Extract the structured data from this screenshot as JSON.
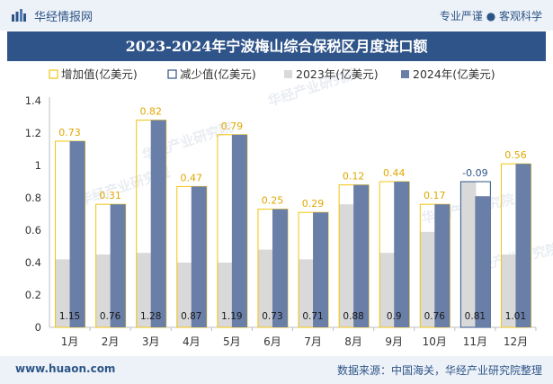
{
  "header": {
    "brand": "华经情报网",
    "tagline": "专业严谨 ● 客观科学"
  },
  "title": "2023-2024年宁波梅山综合保税区月度进口额",
  "footer": {
    "url": "www.huaon.com",
    "source": "数据来源：中国海关，华经产业研究院整理"
  },
  "watermark": "华经产业研究院",
  "colors": {
    "increase": "#f2c40f",
    "decrease": "#2f5489",
    "y2023": "#d9d9d9",
    "y2024": "#6a7fa8",
    "header_text": "#2e5587",
    "title_bg": "#2f5489"
  },
  "chart_data": {
    "type": "bar",
    "title": "2023-2024年宁波梅山综合保税区月度进口额",
    "categories": [
      "1月",
      "2月",
      "3月",
      "4月",
      "5月",
      "6月",
      "7月",
      "8月",
      "9月",
      "10月",
      "11月",
      "12月"
    ],
    "legend": [
      "增加值(亿美元)",
      "减少值(亿美元)",
      "2023年(亿美元)",
      "2024年(亿美元)"
    ],
    "legend_position": "top",
    "series": [
      {
        "name": "2023年(亿美元)",
        "values": [
          0.42,
          0.45,
          0.46,
          0.4,
          0.4,
          0.48,
          0.42,
          0.76,
          0.46,
          0.59,
          0.9,
          0.45
        ]
      },
      {
        "name": "2024年(亿美元)",
        "values": [
          1.15,
          0.76,
          1.28,
          0.87,
          1.19,
          0.73,
          0.71,
          0.88,
          0.9,
          0.76,
          0.81,
          1.01
        ]
      },
      {
        "name": "增加值(亿美元)",
        "values": [
          0.73,
          0.31,
          0.82,
          0.47,
          0.79,
          0.25,
          0.29,
          0.12,
          0.44,
          0.17,
          null,
          0.56
        ]
      },
      {
        "name": "减少值(亿美元)",
        "values": [
          null,
          null,
          null,
          null,
          null,
          null,
          null,
          null,
          null,
          null,
          -0.09,
          null
        ]
      }
    ],
    "change_labels": [
      "0.73",
      "0.31",
      "0.82",
      "0.47",
      "0.79",
      "0.25",
      "0.29",
      "0.12",
      "0.44",
      "0.17",
      "-0.09",
      "0.56"
    ],
    "value_labels_2024": [
      "1.15",
      "0.76",
      "1.28",
      "0.87",
      "1.19",
      "0.73",
      "0.71",
      "0.88",
      "0.9",
      "0.76",
      "0.81",
      "1.01"
    ],
    "yticks": [
      "0",
      "0.2",
      "0.4",
      "0.6",
      "0.8",
      "1",
      "1.2",
      "1.4"
    ],
    "ylim": [
      0,
      1.4
    ],
    "grid": false
  }
}
